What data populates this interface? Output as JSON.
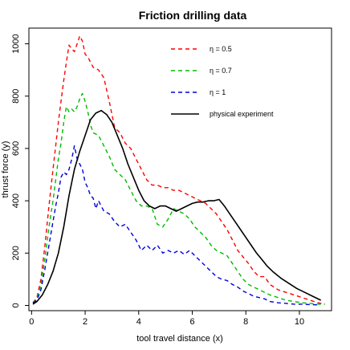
{
  "chart_data": {
    "type": "line",
    "title": "Friction drilling data",
    "xlabel": "tool travel distance (x)",
    "ylabel": "thrust force (y)",
    "xlim": [
      -0.1,
      11.2
    ],
    "ylim": [
      -20,
      1060
    ],
    "xticks": [
      0,
      2,
      4,
      6,
      8,
      10
    ],
    "yticks": [
      0,
      200,
      400,
      600,
      800,
      1000
    ],
    "grid": false,
    "legend_position": "top-right",
    "series": [
      {
        "name": "η = 0.5",
        "color": "#ff0000",
        "dash": "dashed",
        "x": [
          0.05,
          0.2,
          0.35,
          0.5,
          0.65,
          0.8,
          0.9,
          1.0,
          1.1,
          1.2,
          1.3,
          1.4,
          1.5,
          1.6,
          1.7,
          1.8,
          1.9,
          2.0,
          2.1,
          2.2,
          2.3,
          2.5,
          2.7,
          2.9,
          3.1,
          3.3,
          3.5,
          3.7,
          3.9,
          4.1,
          4.3,
          4.5,
          4.7,
          4.9,
          5.1,
          5.3,
          5.5,
          5.7,
          5.9,
          6.1,
          6.3,
          6.5,
          6.7,
          6.9,
          7.1,
          7.3,
          7.5,
          7.7,
          7.9,
          8.1,
          8.3,
          8.5,
          8.7,
          8.9,
          9.2,
          9.5,
          9.8,
          10.1,
          10.4,
          10.7,
          10.95
        ],
        "y": [
          10,
          30,
          100,
          230,
          380,
          520,
          610,
          700,
          780,
          860,
          930,
          995,
          980,
          970,
          1000,
          1030,
          1010,
          960,
          950,
          930,
          910,
          900,
          870,
          780,
          680,
          660,
          620,
          600,
          560,
          520,
          480,
          460,
          460,
          450,
          450,
          440,
          440,
          430,
          420,
          410,
          400,
          390,
          370,
          350,
          320,
          290,
          250,
          210,
          185,
          160,
          130,
          110,
          110,
          80,
          60,
          50,
          40,
          30,
          20,
          10,
          5
        ]
      },
      {
        "name": "η = 0.7",
        "color": "#00bb00",
        "dash": "dashed",
        "x": [
          0.05,
          0.2,
          0.35,
          0.5,
          0.65,
          0.8,
          0.9,
          1.0,
          1.1,
          1.2,
          1.3,
          1.4,
          1.5,
          1.6,
          1.7,
          1.8,
          1.9,
          2.0,
          2.1,
          2.2,
          2.3,
          2.5,
          2.7,
          2.9,
          3.1,
          3.3,
          3.5,
          3.7,
          3.9,
          4.1,
          4.3,
          4.5,
          4.7,
          4.9,
          5.1,
          5.3,
          5.5,
          5.7,
          5.9,
          6.1,
          6.3,
          6.5,
          6.7,
          6.9,
          7.1,
          7.3,
          7.5,
          7.7,
          7.9,
          8.1,
          8.3,
          8.5,
          8.7,
          8.9,
          9.2,
          9.5,
          9.8,
          10.1,
          10.4,
          10.7,
          10.95
        ],
        "y": [
          10,
          25,
          80,
          180,
          300,
          400,
          480,
          560,
          620,
          700,
          760,
          740,
          750,
          740,
          760,
          790,
          810,
          780,
          740,
          690,
          660,
          650,
          610,
          570,
          520,
          500,
          480,
          440,
          400,
          380,
          380,
          370,
          310,
          300,
          330,
          370,
          360,
          350,
          330,
          300,
          280,
          260,
          230,
          210,
          200,
          190,
          160,
          130,
          100,
          80,
          70,
          60,
          50,
          40,
          30,
          20,
          15,
          10,
          8,
          5,
          5
        ]
      },
      {
        "name": "η = 1",
        "color": "#0000dd",
        "dash": "dashed",
        "x": [
          0.05,
          0.2,
          0.35,
          0.5,
          0.65,
          0.8,
          0.9,
          1.0,
          1.1,
          1.2,
          1.3,
          1.4,
          1.5,
          1.6,
          1.7,
          1.8,
          1.9,
          2.0,
          2.1,
          2.2,
          2.3,
          2.4,
          2.5,
          2.7,
          2.9,
          3.1,
          3.3,
          3.5,
          3.7,
          3.9,
          4.1,
          4.3,
          4.5,
          4.7,
          4.9,
          5.1,
          5.3,
          5.5,
          5.7,
          5.9,
          6.1,
          6.3,
          6.5,
          6.7,
          6.9,
          7.1,
          7.3,
          7.5,
          7.7,
          7.9,
          8.1,
          8.3,
          8.5,
          8.7,
          8.9,
          9.2,
          9.5,
          9.8,
          10.1,
          10.4,
          10.7
        ],
        "y": [
          10,
          20,
          60,
          140,
          230,
          320,
          380,
          430,
          490,
          510,
          500,
          520,
          560,
          610,
          560,
          540,
          520,
          470,
          450,
          420,
          410,
          370,
          400,
          360,
          350,
          320,
          300,
          310,
          280,
          250,
          210,
          230,
          210,
          230,
          200,
          210,
          200,
          210,
          195,
          210,
          190,
          170,
          150,
          130,
          110,
          100,
          95,
          80,
          70,
          55,
          45,
          35,
          30,
          25,
          15,
          10,
          8,
          5,
          5,
          3,
          2
        ]
      },
      {
        "name": "physical experiment",
        "color": "#000000",
        "dash": "solid",
        "x": [
          0.05,
          0.2,
          0.4,
          0.6,
          0.8,
          1.0,
          1.2,
          1.4,
          1.6,
          1.8,
          2.0,
          2.2,
          2.4,
          2.6,
          2.8,
          3.0,
          3.2,
          3.4,
          3.6,
          3.8,
          4.0,
          4.2,
          4.4,
          4.6,
          4.8,
          5.0,
          5.2,
          5.4,
          5.6,
          5.8,
          6.0,
          6.2,
          6.4,
          6.6,
          6.8,
          7.0,
          7.2,
          7.4,
          7.6,
          7.8,
          8.0,
          8.2,
          8.4,
          8.6,
          8.8,
          9.0,
          9.3,
          9.6,
          9.9,
          10.2,
          10.5,
          10.8
        ],
        "y": [
          5,
          15,
          40,
          80,
          130,
          200,
          300,
          420,
          520,
          590,
          650,
          710,
          735,
          745,
          730,
          700,
          650,
          600,
          540,
          490,
          440,
          400,
          380,
          370,
          380,
          380,
          370,
          360,
          370,
          380,
          390,
          395,
          395,
          400,
          400,
          405,
          380,
          350,
          320,
          290,
          260,
          230,
          200,
          175,
          150,
          130,
          105,
          85,
          65,
          50,
          35,
          20
        ]
      }
    ]
  }
}
